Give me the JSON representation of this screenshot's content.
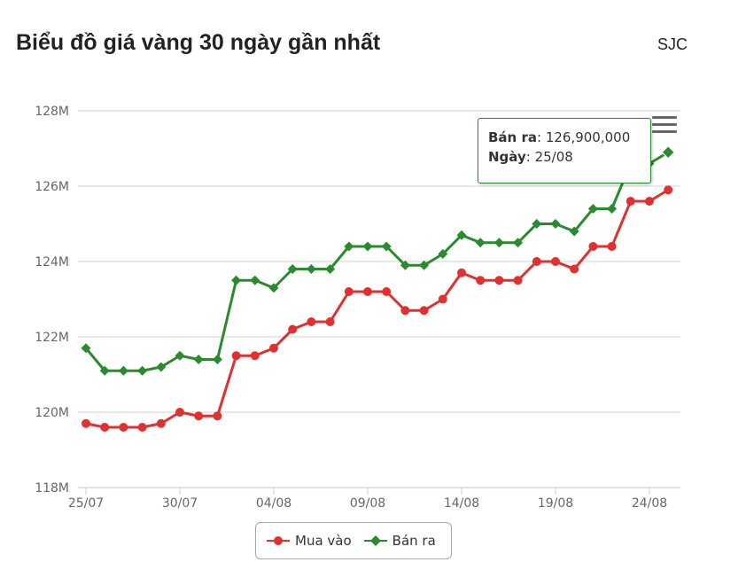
{
  "header": {
    "title": "Biểu đồ giá vàng 30 ngày gần nhất",
    "brand": "SJC"
  },
  "chart_data": {
    "type": "line",
    "title": "Biểu đồ giá vàng 30 ngày gần nhất",
    "x": [
      "25/07",
      "26/07",
      "27/07",
      "28/07",
      "29/07",
      "30/07",
      "31/07",
      "01/08",
      "02/08",
      "03/08",
      "04/08",
      "05/08",
      "06/08",
      "07/08",
      "08/08",
      "09/08",
      "10/08",
      "11/08",
      "12/08",
      "13/08",
      "14/08",
      "15/08",
      "16/08",
      "17/08",
      "18/08",
      "19/08",
      "20/08",
      "21/08",
      "22/08",
      "23/08",
      "24/08",
      "25/08"
    ],
    "x_tick_labels": [
      "25/07",
      "30/07",
      "04/08",
      "09/08",
      "14/08",
      "19/08",
      "24/08"
    ],
    "x_tick_indices": [
      0,
      5,
      10,
      15,
      20,
      25,
      30
    ],
    "y_tick_labels": [
      "118M",
      "120M",
      "122M",
      "124M",
      "126M",
      "128M"
    ],
    "y_ticks": [
      118000000,
      120000000,
      122000000,
      124000000,
      126000000,
      128000000
    ],
    "ylim": [
      118000000,
      128000000
    ],
    "grid": "horizontal",
    "legend_position": "bottom-center",
    "series": [
      {
        "name": "Mua vào",
        "color": "#e03030",
        "marker": "circle",
        "values": [
          119.7,
          119.6,
          119.6,
          119.6,
          119.7,
          120.0,
          119.9,
          119.9,
          121.5,
          121.5,
          121.7,
          122.2,
          122.4,
          122.4,
          123.2,
          123.2,
          123.2,
          122.7,
          122.7,
          123.0,
          123.7,
          123.5,
          123.5,
          123.5,
          124.0,
          124.0,
          123.8,
          124.4,
          124.4,
          125.6,
          125.6,
          125.9
        ]
      },
      {
        "name": "Bán ra",
        "color": "#2a8a2e",
        "marker": "diamond",
        "values": [
          121.7,
          121.1,
          121.1,
          121.1,
          121.2,
          121.5,
          121.4,
          121.4,
          123.5,
          123.5,
          123.3,
          123.8,
          123.8,
          123.8,
          124.4,
          124.4,
          124.4,
          123.9,
          123.9,
          124.2,
          124.7,
          124.5,
          124.5,
          124.5,
          125.0,
          125.0,
          124.8,
          125.4,
          125.4,
          126.6,
          126.6,
          126.9
        ]
      }
    ],
    "value_scale": 1000000
  },
  "tooltip": {
    "series_label": "Bán ra",
    "value": "126,900,000",
    "date_label": "Ngày",
    "date": "25/08"
  },
  "menu": {
    "icon": "hamburger-icon"
  }
}
